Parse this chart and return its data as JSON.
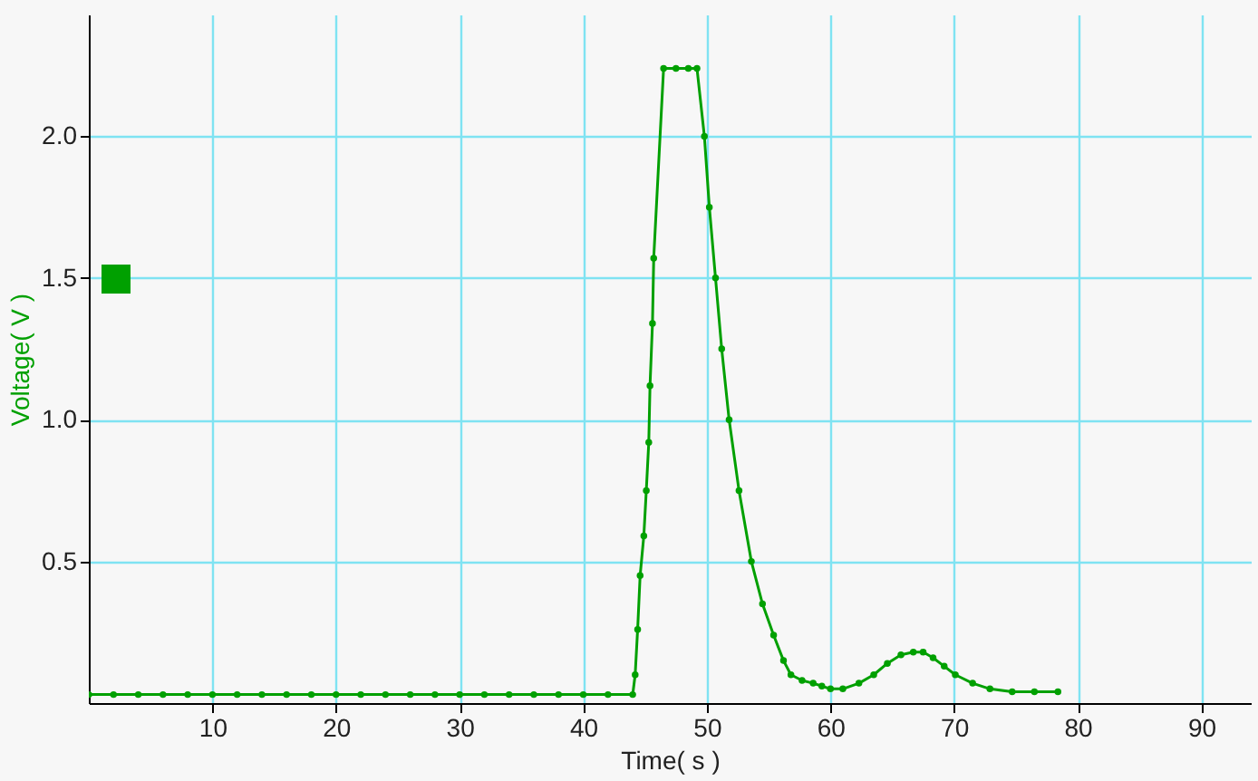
{
  "chart_data": {
    "type": "line",
    "xlabel": "Time( s )",
    "ylabel": "Voltage( V )",
    "xlim": [
      0,
      94
    ],
    "ylim": [
      0,
      2.43
    ],
    "xticks": [
      10,
      20,
      30,
      40,
      50,
      60,
      70,
      80,
      90
    ],
    "yticks": [
      {
        "value": 0.5,
        "label": "0.5"
      },
      {
        "value": 1,
        "label": "1.0"
      },
      {
        "value": 1.5,
        "label": "1.5"
      },
      {
        "value": 2,
        "label": "2.0"
      }
    ],
    "grid": true,
    "marker": "circle",
    "line_style": "solid",
    "series": [
      {
        "color": "#00a000",
        "x": [
          0,
          2,
          4,
          6,
          8,
          10,
          12,
          14,
          16,
          18,
          20,
          22,
          24,
          26,
          28,
          30,
          32,
          34,
          36,
          38,
          40,
          42,
          44,
          44.2,
          44.4,
          44.6,
          44.9,
          45.1,
          45.3,
          45.4,
          45.6,
          45.7,
          46.5,
          47.5,
          48.5,
          49.2,
          49.8,
          50.2,
          50.7,
          51.2,
          51.8,
          52.6,
          53.6,
          54.5,
          55.4,
          56.2,
          56.8,
          57.7,
          58.6,
          59.3,
          60,
          61,
          62.3,
          63.5,
          64.6,
          65.7,
          66.7,
          67.5,
          68.3,
          69.2,
          70.1,
          71.5,
          72.9,
          74.7,
          76.5,
          78.4
        ],
        "values": [
          0.03,
          0.03,
          0.03,
          0.03,
          0.03,
          0.03,
          0.03,
          0.03,
          0.03,
          0.03,
          0.03,
          0.03,
          0.03,
          0.03,
          0.03,
          0.03,
          0.03,
          0.03,
          0.03,
          0.03,
          0.03,
          0.03,
          0.03,
          0.1,
          0.26,
          0.45,
          0.59,
          0.75,
          0.92,
          1.12,
          1.34,
          1.57,
          2.24,
          2.24,
          2.24,
          2.24,
          2.0,
          1.75,
          1.5,
          1.25,
          1.0,
          0.75,
          0.5,
          0.35,
          0.24,
          0.15,
          0.1,
          0.08,
          0.07,
          0.06,
          0.05,
          0.05,
          0.07,
          0.1,
          0.14,
          0.17,
          0.18,
          0.18,
          0.16,
          0.13,
          0.1,
          0.07,
          0.05,
          0.04,
          0.04,
          0.04
        ]
      }
    ]
  }
}
